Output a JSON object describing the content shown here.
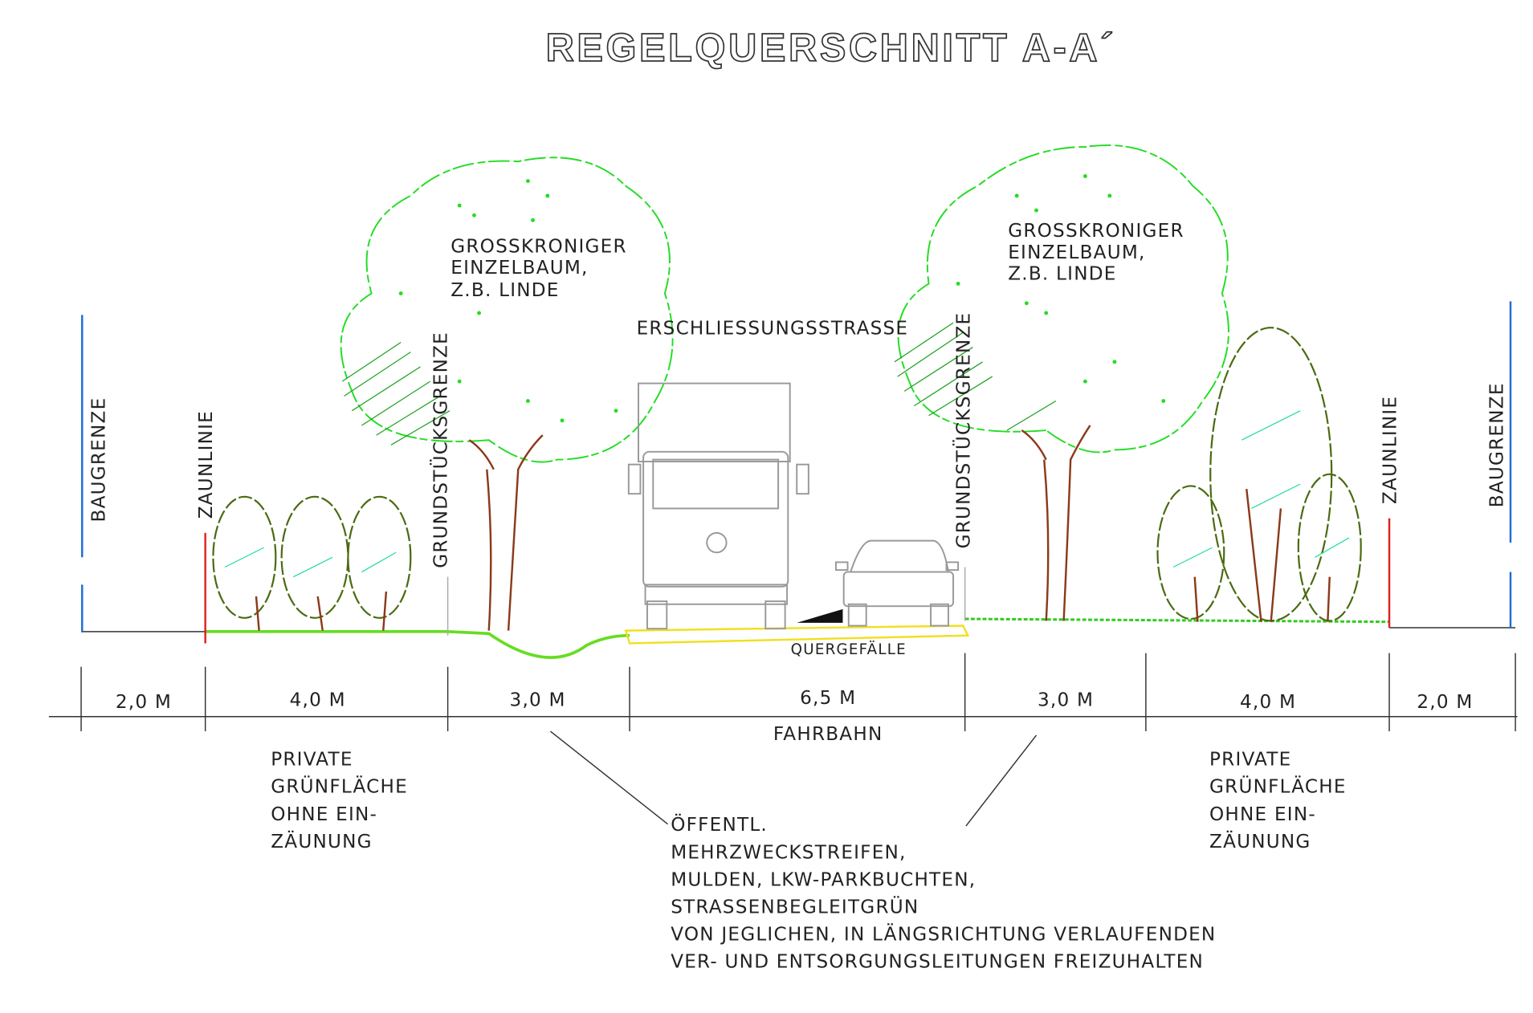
{
  "title": "REGELQUERSCHNITT  A-A´",
  "tree_labels": [
    [
      "GROSSKRONIGER",
      "EINZELBAUM,",
      "Z.B. LINDE"
    ],
    [
      "GROSSKRONIGER",
      "EINZELBAUM,",
      "Z.B. LINDE"
    ]
  ],
  "road_label": "ERSCHLIESSUNGSSTRASSE",
  "vertical_labels": [
    "BAUGRENZE",
    "ZAUNLINIE",
    "GRUNDSTÜCKSGRENZE",
    "GRUNDSTÜCKSGRENZE",
    "ZAUNLINIE",
    "BAUGRENZE"
  ],
  "slope_label": "QUERGEFÄLLE",
  "dimensions": [
    "2,0 M",
    "4,0 M",
    "3,0 M",
    "6,5 M",
    "3,0 M",
    "4,0 M",
    "2,0 M"
  ],
  "carriageway_label": "FAHRBAHN",
  "green_notes": [
    [
      "PRIVATE",
      "GRÜNFLÄCHE",
      "OHNE EIN-",
      "ZÄUNUNG"
    ],
    [
      "PRIVATE",
      "GRÜNFLÄCHE",
      "OHNE EIN-",
      "ZÄUNUNG"
    ]
  ],
  "public_strip_note": [
    "ÖFFENTL.",
    "MEHRZWECKSTREIFEN,",
    "MULDEN, LKW-PARKBUCHTEN,",
    "STRASSENBEGLEITGRÜN",
    "VON JEGLICHEN, IN LÄNGSRICHTUNG VERLAUFENDEN",
    "VER- UND ENTSORGUNGSLEITUNGEN FREIZUHALTEN"
  ]
}
